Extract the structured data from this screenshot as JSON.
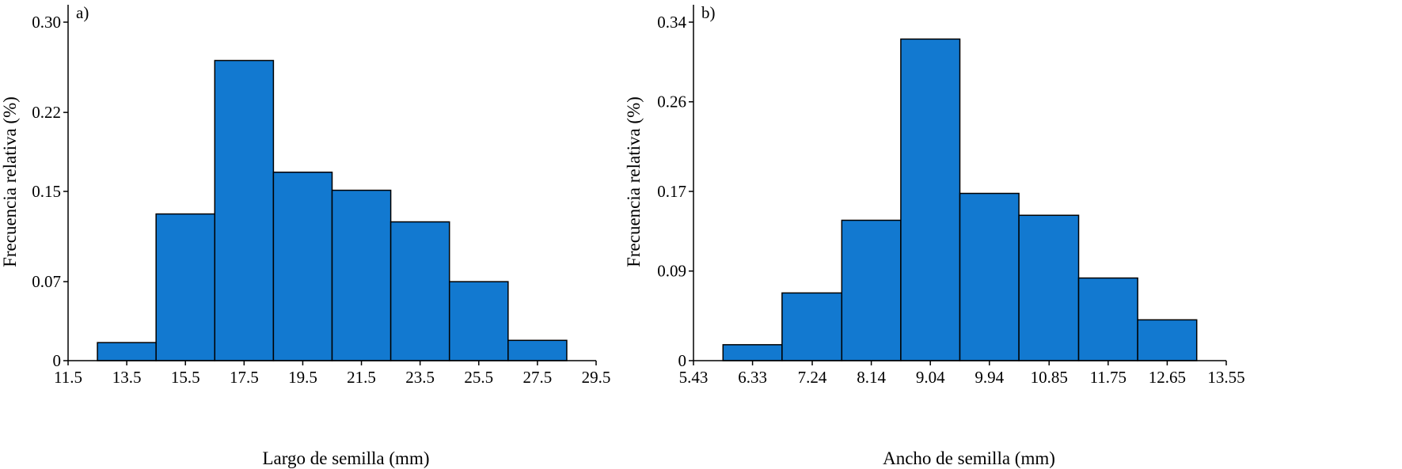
{
  "chart_data": [
    {
      "type": "bar",
      "panel_label": "a)",
      "xlabel": "Largo de semilla (mm)",
      "ylabel": "Frecuencia relativa (%)",
      "x_ticks": [
        "11.5",
        "13.5",
        "15.5",
        "17.5",
        "19.5",
        "21.5",
        "23.5",
        "25.5",
        "27.5",
        "29.5"
      ],
      "x_tick_values": [
        11.5,
        13.5,
        15.5,
        17.5,
        19.5,
        21.5,
        23.5,
        25.5,
        27.5,
        29.5
      ],
      "xlim": [
        11.5,
        29.5
      ],
      "y_ticks": [
        "0",
        "0.07",
        "0.15",
        "0.22",
        "0.30"
      ],
      "y_tick_values": [
        0,
        0.07,
        0.15,
        0.22,
        0.3
      ],
      "ylim": [
        0,
        0.3
      ],
      "bin_edges": [
        12.5,
        14.5,
        16.5,
        18.5,
        20.5,
        22.5,
        24.5,
        26.5,
        28.5
      ],
      "values": [
        0.016,
        0.13,
        0.266,
        0.167,
        0.151,
        0.123,
        0.07,
        0.018
      ],
      "bar_color": "#1279d0"
    },
    {
      "type": "bar",
      "panel_label": "b)",
      "xlabel": "Ancho de semilla (mm)",
      "ylabel": "Frecuencia relativa (%)",
      "x_ticks": [
        "5.43",
        "6.33",
        "7.24",
        "8.14",
        "9.04",
        "9.94",
        "10.85",
        "11.75",
        "12.65",
        "13.55"
      ],
      "x_tick_values": [
        5.43,
        6.33,
        7.24,
        8.14,
        9.04,
        9.94,
        10.85,
        11.75,
        12.65,
        13.55
      ],
      "xlim": [
        5.43,
        13.55
      ],
      "y_ticks": [
        "0",
        "0.09",
        "0.17",
        "0.26",
        "0.34"
      ],
      "y_tick_values": [
        0,
        0.09,
        0.17,
        0.26,
        0.34
      ],
      "ylim": [
        0,
        0.34
      ],
      "bin_edges": [
        5.88,
        6.78,
        7.69,
        8.59,
        9.49,
        10.39,
        11.3,
        12.2,
        13.1
      ],
      "values": [
        0.016,
        0.068,
        0.141,
        0.323,
        0.168,
        0.146,
        0.083,
        0.041
      ],
      "bar_color": "#1279d0"
    }
  ]
}
